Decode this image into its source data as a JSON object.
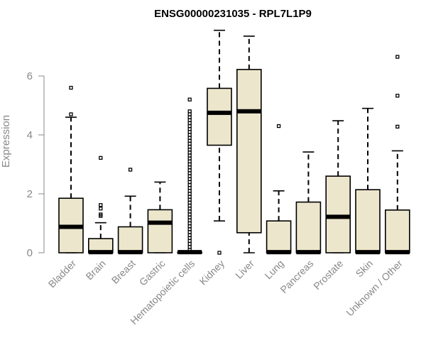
{
  "chart_data": {
    "type": "boxplot",
    "title": "ENSG00000231035 - RPL7L1P9",
    "xlabel": "",
    "ylabel": "Expression",
    "ylim": [
      0,
      7.4
    ],
    "yticks": [
      0,
      2,
      4,
      6
    ],
    "fill_color": "#ece6cc",
    "categories": [
      "Bladder",
      "Brain",
      "Breast",
      "Gastric",
      "Hematopoietic cells",
      "Kidney",
      "Liver",
      "Lung",
      "Pancreas",
      "Prostate",
      "Skin",
      "Unknown / Other"
    ],
    "boxes": [
      {
        "name": "Bladder",
        "lower_whisker": 0,
        "q1": 0,
        "median": 0.88,
        "q3": 1.85,
        "upper_whisker": 4.6,
        "outliers": [
          4.7,
          5.6
        ]
      },
      {
        "name": "Brain",
        "lower_whisker": 0,
        "q1": 0,
        "median": 0.02,
        "q3": 0.48,
        "upper_whisker": 1.02,
        "outliers": [
          1.25,
          1.3,
          1.5,
          1.62,
          3.22
        ]
      },
      {
        "name": "Breast",
        "lower_whisker": 0,
        "q1": 0,
        "median": 0.02,
        "q3": 0.88,
        "upper_whisker": 1.92,
        "outliers": [
          2.82
        ]
      },
      {
        "name": "Gastric",
        "lower_whisker": 0,
        "q1": 0,
        "median": 1.02,
        "q3": 1.46,
        "upper_whisker": 2.4,
        "outliers": []
      },
      {
        "name": "Hematopoietic cells",
        "lower_whisker": 0,
        "q1": 0,
        "median": 0.02,
        "q3": 0.02,
        "upper_whisker": 0.02,
        "outliers": [
          0.1,
          0.2,
          0.3,
          0.4,
          0.5,
          0.6,
          0.7,
          0.8,
          0.9,
          1.0,
          1.1,
          1.2,
          1.3,
          1.4,
          1.5,
          1.6,
          1.7,
          1.8,
          1.9,
          2.0,
          2.1,
          2.2,
          2.3,
          2.4,
          2.5,
          2.6,
          2.7,
          2.8,
          2.9,
          3.0,
          3.1,
          3.2,
          3.3,
          3.4,
          3.5,
          3.6,
          3.7,
          3.8,
          3.9,
          4.0,
          4.1,
          4.2,
          4.3,
          4.4,
          4.5,
          4.6,
          4.7,
          4.8,
          5.2
        ]
      },
      {
        "name": "Kidney",
        "lower_whisker": 1.08,
        "q1": 3.65,
        "median": 4.75,
        "q3": 5.58,
        "upper_whisker": 7.55,
        "outliers": [
          0
        ]
      },
      {
        "name": "Liver",
        "lower_whisker": 0,
        "q1": 0.68,
        "median": 4.8,
        "q3": 6.22,
        "upper_whisker": 7.35,
        "outliers": []
      },
      {
        "name": "Lung",
        "lower_whisker": 0,
        "q1": 0,
        "median": 0.02,
        "q3": 1.08,
        "upper_whisker": 2.1,
        "outliers": [
          4.3
        ]
      },
      {
        "name": "Pancreas",
        "lower_whisker": 0,
        "q1": 0,
        "median": 0.02,
        "q3": 1.72,
        "upper_whisker": 3.42,
        "outliers": []
      },
      {
        "name": "Prostate",
        "lower_whisker": 0,
        "q1": 0,
        "median": 1.22,
        "q3": 2.6,
        "upper_whisker": 4.48,
        "outliers": []
      },
      {
        "name": "Skin",
        "lower_whisker": 0,
        "q1": 0,
        "median": 0.02,
        "q3": 2.14,
        "upper_whisker": 4.9,
        "outliers": []
      },
      {
        "name": "Unknown / Other",
        "lower_whisker": 0,
        "q1": 0,
        "median": 0.02,
        "q3": 1.45,
        "upper_whisker": 3.46,
        "outliers": [
          4.28,
          5.33,
          6.65
        ]
      }
    ]
  }
}
